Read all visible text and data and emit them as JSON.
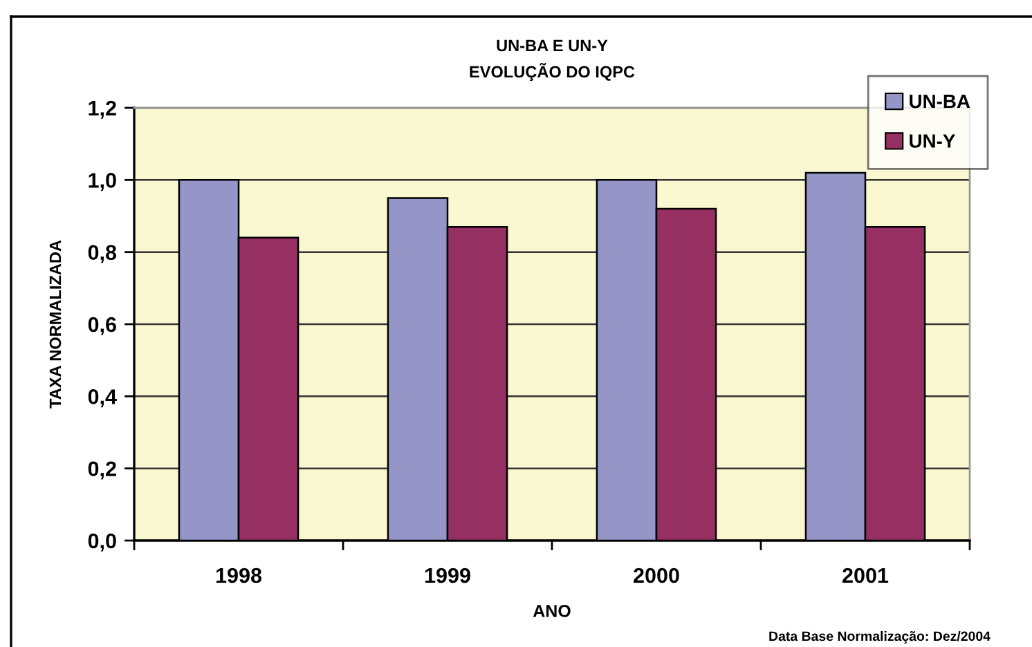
{
  "chart_data": {
    "type": "bar",
    "title": "UN-BA E UN-Y",
    "subtitle": "EVOLUÇÃO DO IQPC",
    "xlabel": "ANO",
    "ylabel": "TAXA NORMALIZADA",
    "annotations": [
      "Data Base Normalização: Dez/2004"
    ],
    "categories": [
      "1998",
      "1999",
      "2000",
      "2001"
    ],
    "series": [
      {
        "name": "UN-BA",
        "color": "#9595c8",
        "values": [
          1.0,
          0.95,
          1.0,
          1.02
        ]
      },
      {
        "name": "UN-Y",
        "color": "#963062",
        "values": [
          0.84,
          0.87,
          0.92,
          0.87
        ]
      }
    ],
    "ylim": [
      0,
      1.2
    ],
    "yticks": [
      {
        "value": 0,
        "label": "0,0"
      },
      {
        "value": 0.2,
        "label": "0,2"
      },
      {
        "value": 0.4,
        "label": "0,4"
      },
      {
        "value": 0.6,
        "label": "0,6"
      },
      {
        "value": 0.8,
        "label": "0,8"
      },
      {
        "value": 1.0,
        "label": "1,0"
      },
      {
        "value": 1.2,
        "label": "1,2"
      }
    ],
    "grid": "y",
    "legend": "top right"
  }
}
